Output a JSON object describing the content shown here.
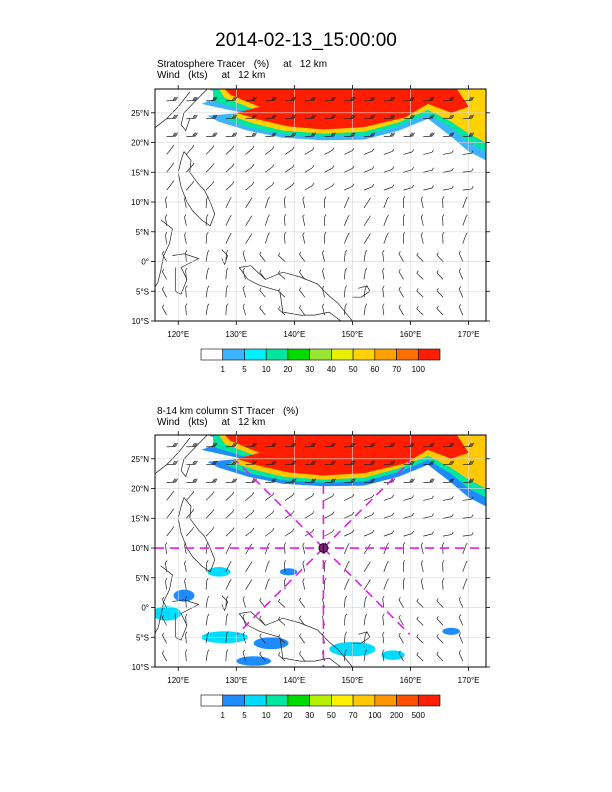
{
  "title": "2014-02-13_15:00:00",
  "panels": [
    {
      "subtitle_line1": "Stratosphere Tracer   (%)     at   12 km",
      "subtitle_line2": "Wind   (kts)     at   12 km",
      "lat_labels": [
        "25°N",
        "20°N",
        "15°N",
        "10°N",
        "5°N",
        "0°",
        "5°S",
        "10°S"
      ],
      "lon_labels": [
        "120°E",
        "130°E",
        "140°E",
        "150°E",
        "160°E",
        "170°E"
      ],
      "colorbar_labels": [
        "1",
        "5",
        "10",
        "20",
        "30",
        "40",
        "50",
        "60",
        "70",
        "100"
      ],
      "colorbar_colors": [
        "#ffffff",
        "#3cb4ff",
        "#00f0ff",
        "#00e6a0",
        "#00dc00",
        "#9be632",
        "#e6f000",
        "#ffd200",
        "#ffa000",
        "#ff6e00",
        "#ff1e00"
      ]
    },
    {
      "subtitle_line1": "8-14 km column ST Tracer   (%)",
      "subtitle_line2": "Wind   (kts)     at   12 km",
      "lat_labels": [
        "25°N",
        "20°N",
        "15°N",
        "10°N",
        "5°N",
        "0°",
        "5°S",
        "10°S"
      ],
      "lon_labels": [
        "120°E",
        "130°E",
        "140°E",
        "150°E",
        "160°E",
        "170°E"
      ],
      "colorbar_labels": [
        "1",
        "5",
        "10",
        "20",
        "30",
        "50",
        "70",
        "100",
        "200",
        "500"
      ],
      "colorbar_colors": [
        "#ffffff",
        "#1e8cff",
        "#00dcff",
        "#00e6a0",
        "#00dc00",
        "#b4f000",
        "#fff000",
        "#ffc800",
        "#ff9600",
        "#ff5000",
        "#ff1e00"
      ]
    }
  ],
  "map": {
    "lon_range": [
      116,
      173
    ],
    "lat_range": [
      -10,
      29
    ],
    "lon_ticks": [
      120,
      130,
      140,
      150,
      160,
      170
    ],
    "lat_ticks": [
      25,
      20,
      15,
      10,
      5,
      0,
      -5,
      -10
    ],
    "projection": "cylindrical",
    "grid": true
  },
  "marker": {
    "center_lon": 145,
    "center_lat": 10,
    "line_color": "#e61ee6"
  }
}
